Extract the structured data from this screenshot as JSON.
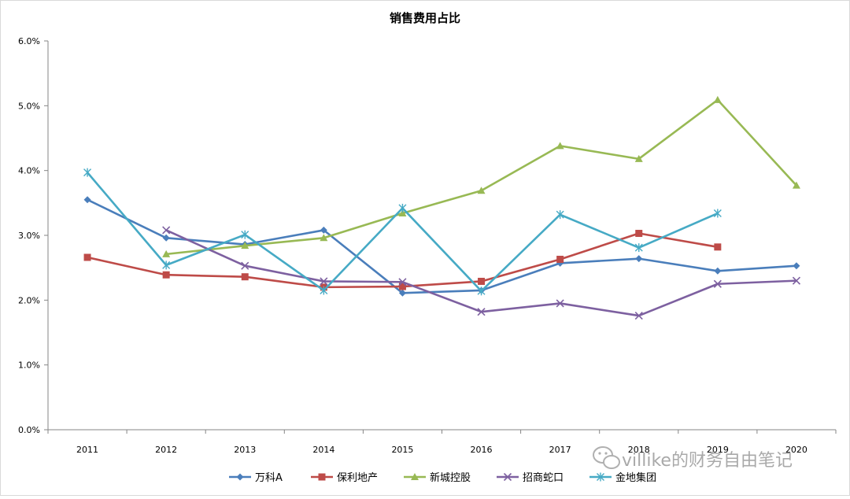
{
  "chart_data": {
    "type": "line",
    "title": "销售费用占比",
    "x": [
      "2011",
      "2012",
      "2013",
      "2014",
      "2015",
      "2016",
      "2017",
      "2018",
      "2019",
      "2020"
    ],
    "y_ticks": [
      "0.0%",
      "1.0%",
      "2.0%",
      "3.0%",
      "4.0%",
      "5.0%",
      "6.0%"
    ],
    "ylim": [
      0,
      6
    ],
    "y_unit": "%",
    "grid": false,
    "legend_position": "bottom",
    "series": [
      {
        "name": "万科A",
        "color": "#4A7EBB",
        "marker": "diamond",
        "values": [
          3.55,
          2.96,
          2.86,
          3.08,
          2.11,
          2.15,
          2.57,
          2.64,
          2.45,
          2.53
        ]
      },
      {
        "name": "保利地产",
        "color": "#BE4B48",
        "marker": "square",
        "values": [
          2.66,
          2.39,
          2.36,
          2.2,
          2.21,
          2.29,
          2.63,
          3.03,
          2.82,
          null
        ]
      },
      {
        "name": "新城控股",
        "color": "#98B954",
        "marker": "triangle",
        "values": [
          null,
          2.71,
          2.84,
          2.96,
          3.34,
          3.69,
          4.38,
          4.18,
          5.09,
          3.77
        ]
      },
      {
        "name": "招商蛇口",
        "color": "#7D60A0",
        "marker": "x",
        "values": [
          null,
          3.08,
          2.53,
          2.29,
          2.28,
          1.82,
          1.95,
          1.76,
          2.25,
          2.3
        ]
      },
      {
        "name": "金地集团",
        "color": "#46AAC5",
        "marker": "star",
        "values": [
          3.97,
          2.54,
          3.01,
          2.15,
          3.42,
          2.14,
          3.32,
          2.81,
          3.34,
          null
        ]
      }
    ]
  },
  "watermark": "villike的财务自由笔记"
}
